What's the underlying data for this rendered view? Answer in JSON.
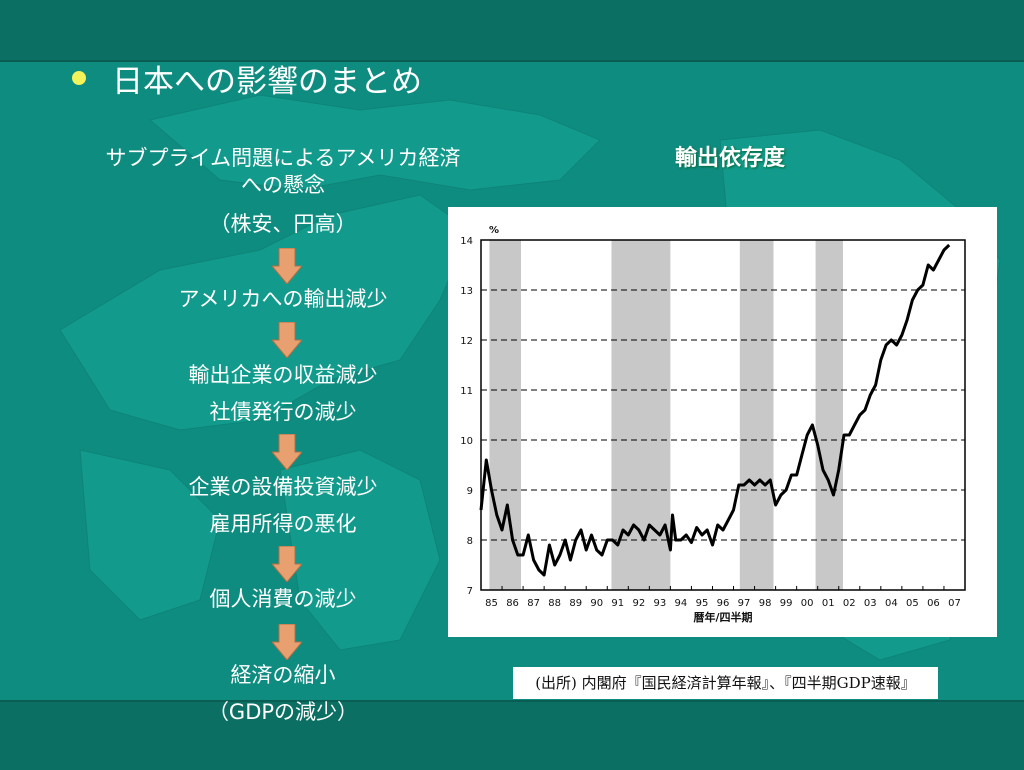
{
  "slide": {
    "title": "日本への影響のまとめ",
    "bullet_color": "#f2f25a"
  },
  "flow": {
    "steps": [
      {
        "lines": [
          "サブプライム問題によるアメリカ経済",
          "への懸念",
          "（株安、円高）"
        ]
      },
      {
        "lines": [
          "アメリカへの輸出減少"
        ]
      },
      {
        "lines": [
          "輸出企業の収益減少",
          "社債発行の減少"
        ]
      },
      {
        "lines": [
          "企業の設備投資減少",
          "雇用所得の悪化"
        ]
      },
      {
        "lines": [
          "個人消費の減少"
        ]
      },
      {
        "lines": [
          "経済の縮小",
          "（GDPの減少）"
        ]
      }
    ],
    "arrow_color": "#e8a070"
  },
  "chart": {
    "title": "輸出依存度",
    "source": "(出所) 内閣府『国民経済計算年報』、『四半期GDP速報』"
  },
  "chart_data": {
    "type": "line",
    "ylabel": "%",
    "xlabel": "暦年/四半期",
    "ylim": [
      7,
      14
    ],
    "yticks": [
      "7",
      "8",
      "9",
      "10",
      "11",
      "12",
      "13",
      "14"
    ],
    "xlim": [
      1985,
      2008
    ],
    "xticks": [
      "85",
      "86",
      "87",
      "88",
      "89",
      "90",
      "91",
      "92",
      "93",
      "94",
      "95",
      "96",
      "97",
      "98",
      "99",
      "00",
      "01",
      "02",
      "03",
      "04",
      "05",
      "06",
      "07"
    ],
    "grid": "dashed horizontal",
    "recession_shading": [
      [
        1985.4,
        1986.9
      ],
      [
        1991.2,
        1994.0
      ],
      [
        1997.3,
        1998.9
      ],
      [
        2000.9,
        2002.2
      ]
    ],
    "series": [
      {
        "points": [
          [
            1985.0,
            8.6
          ],
          [
            1985.25,
            9.6
          ],
          [
            1985.5,
            9.0
          ],
          [
            1985.75,
            8.5
          ],
          [
            1986.0,
            8.2
          ],
          [
            1986.25,
            8.7
          ],
          [
            1986.5,
            8.0
          ],
          [
            1986.75,
            7.7
          ],
          [
            1987.0,
            7.7
          ],
          [
            1987.25,
            8.1
          ],
          [
            1987.5,
            7.6
          ],
          [
            1987.75,
            7.4
          ],
          [
            1988.0,
            7.3
          ],
          [
            1988.25,
            7.9
          ],
          [
            1988.5,
            7.5
          ],
          [
            1988.75,
            7.7
          ],
          [
            1989.0,
            8.0
          ],
          [
            1989.25,
            7.6
          ],
          [
            1989.5,
            8.0
          ],
          [
            1989.75,
            8.2
          ],
          [
            1990.0,
            7.8
          ],
          [
            1990.25,
            8.1
          ],
          [
            1990.5,
            7.8
          ],
          [
            1990.75,
            7.7
          ],
          [
            1991.0,
            8.0
          ],
          [
            1991.25,
            8.0
          ],
          [
            1991.5,
            7.9
          ],
          [
            1991.75,
            8.2
          ],
          [
            1992.0,
            8.1
          ],
          [
            1992.25,
            8.3
          ],
          [
            1992.5,
            8.2
          ],
          [
            1992.75,
            8.0
          ],
          [
            1993.0,
            8.3
          ],
          [
            1993.25,
            8.2
          ],
          [
            1993.5,
            8.1
          ],
          [
            1993.75,
            8.3
          ],
          [
            1994.0,
            7.8
          ],
          [
            1994.1,
            8.5
          ],
          [
            1994.25,
            8.0
          ],
          [
            1994.5,
            8.0
          ],
          [
            1994.75,
            8.1
          ],
          [
            1995.0,
            7.95
          ],
          [
            1995.25,
            8.25
          ],
          [
            1995.5,
            8.1
          ],
          [
            1995.75,
            8.2
          ],
          [
            1996.0,
            7.9
          ],
          [
            1996.25,
            8.3
          ],
          [
            1996.5,
            8.2
          ],
          [
            1996.75,
            8.4
          ],
          [
            1997.0,
            8.6
          ],
          [
            1997.25,
            9.1
          ],
          [
            1997.5,
            9.1
          ],
          [
            1997.75,
            9.2
          ],
          [
            1998.0,
            9.1
          ],
          [
            1998.25,
            9.2
          ],
          [
            1998.5,
            9.1
          ],
          [
            1998.75,
            9.2
          ],
          [
            1999.0,
            8.7
          ],
          [
            1999.25,
            8.9
          ],
          [
            1999.5,
            9.0
          ],
          [
            1999.75,
            9.3
          ],
          [
            2000.0,
            9.3
          ],
          [
            2000.25,
            9.7
          ],
          [
            2000.5,
            10.1
          ],
          [
            2000.75,
            10.3
          ],
          [
            2001.0,
            9.9
          ],
          [
            2001.25,
            9.4
          ],
          [
            2001.5,
            9.2
          ],
          [
            2001.75,
            8.9
          ],
          [
            2002.0,
            9.4
          ],
          [
            2002.25,
            10.1
          ],
          [
            2002.5,
            10.1
          ],
          [
            2002.75,
            10.3
          ],
          [
            2003.0,
            10.5
          ],
          [
            2003.25,
            10.6
          ],
          [
            2003.5,
            10.9
          ],
          [
            2003.75,
            11.1
          ],
          [
            2004.0,
            11.6
          ],
          [
            2004.25,
            11.9
          ],
          [
            2004.5,
            12.0
          ],
          [
            2004.75,
            11.9
          ],
          [
            2005.0,
            12.1
          ],
          [
            2005.25,
            12.4
          ],
          [
            2005.5,
            12.8
          ],
          [
            2005.75,
            13.0
          ],
          [
            2006.0,
            13.1
          ],
          [
            2006.25,
            13.5
          ],
          [
            2006.5,
            13.4
          ],
          [
            2006.75,
            13.6
          ],
          [
            2007.0,
            13.8
          ],
          [
            2007.25,
            13.9
          ]
        ]
      }
    ]
  }
}
